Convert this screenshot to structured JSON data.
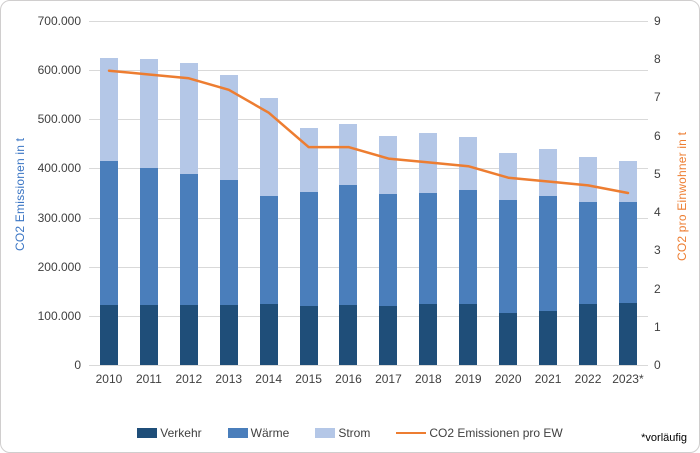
{
  "footnote": "*vorläufig",
  "colors": {
    "verkehr": "#1F4E79",
    "waerme": "#4A7EBB",
    "strom": "#B4C7E7",
    "line": "#ED7D31",
    "grid": "#D9D9D9",
    "tick_text": "#404040",
    "left_title": "#3A75C4",
    "border": "#D0CECE"
  },
  "chart_data": {
    "type": "bar",
    "subtype": "stacked-bar-with-line",
    "stacked": true,
    "grid": "on",
    "legend_position": "bottom",
    "categories": [
      "2010",
      "2011",
      "2012",
      "2013",
      "2014",
      "2015",
      "2016",
      "2017",
      "2018",
      "2019",
      "2020",
      "2021",
      "2022",
      "2023*"
    ],
    "series": [
      {
        "name": "Verkehr",
        "type": "bar",
        "color": "#1F4E79",
        "values": [
          123000,
          123000,
          123000,
          123000,
          124000,
          121000,
          122000,
          121000,
          125000,
          124000,
          106000,
          109000,
          124000,
          127000
        ]
      },
      {
        "name": "Wärme",
        "type": "bar",
        "color": "#4A7EBB",
        "values": [
          292000,
          277000,
          265000,
          254000,
          220000,
          231000,
          244000,
          227000,
          226000,
          232000,
          230000,
          235000,
          208000,
          205000
        ]
      },
      {
        "name": "Strom",
        "type": "bar",
        "color": "#B4C7E7",
        "values": [
          210000,
          223000,
          227000,
          213000,
          200000,
          131000,
          124000,
          118000,
          121000,
          109000,
          96000,
          95000,
          92000,
          83000
        ]
      },
      {
        "name": "CO2 Emissionen pro EW",
        "type": "line",
        "axis": "right",
        "color": "#ED7D31",
        "values": [
          7.7,
          7.6,
          7.5,
          7.2,
          6.6,
          5.7,
          5.7,
          5.4,
          5.3,
          5.2,
          4.9,
          4.8,
          4.7,
          4.5
        ]
      }
    ],
    "stack_totals": [
      625000,
      623000,
      615000,
      590000,
      544000,
      483000,
      490000,
      466000,
      472000,
      465000,
      432000,
      439000,
      424000,
      415000
    ],
    "left_axis": {
      "title": "CO2 Emissionen in t",
      "min": 0,
      "max": 700000,
      "step": 100000,
      "tick_labels": [
        "700.000",
        "600.000",
        "500.000",
        "400.000",
        "300.000",
        "200.000",
        "100.000",
        "0"
      ]
    },
    "right_axis": {
      "title": "CO2  pro Einwohner in t",
      "min": 0,
      "max": 9,
      "step": 1,
      "tick_labels": [
        "9",
        "8",
        "7",
        "6",
        "5",
        "4",
        "3",
        "2",
        "1",
        "0"
      ]
    }
  }
}
